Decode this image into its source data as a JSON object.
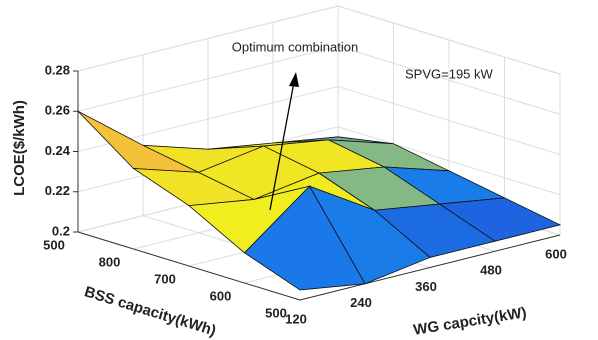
{
  "chart_data": {
    "type": "surface",
    "zlabel": "LCOE($/kWh)",
    "xlabel": "WG capcity(kW)",
    "ylabel": "BSS capacity(kWh)",
    "x": [
      120,
      240,
      360,
      480,
      600
    ],
    "y_categories": [
      500,
      600,
      700,
      800,
      500
    ],
    "z": [
      [
        0.205,
        0.2,
        0.205,
        0.205,
        0.205
      ],
      [
        0.215,
        0.24,
        0.22,
        0.215,
        0.21
      ],
      [
        0.23,
        0.225,
        0.23,
        0.225,
        0.215
      ],
      [
        0.24,
        0.23,
        0.235,
        0.23,
        0.22
      ],
      [
        0.26,
        0.235,
        0.225,
        0.22,
        0.215
      ]
    ],
    "xlim": [
      120,
      600
    ],
    "zlim": [
      0.2,
      0.28
    ],
    "zticks": [
      0.2,
      0.22,
      0.24,
      0.26,
      0.28
    ],
    "annotations": [
      "Optimum combination",
      "SPVG=195 kW"
    ],
    "grid": true
  }
}
